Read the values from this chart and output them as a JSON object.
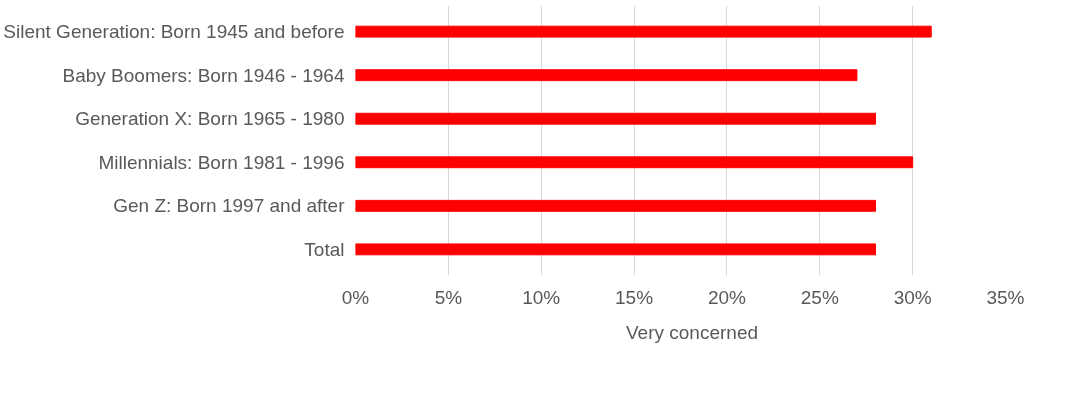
{
  "chart_data": {
    "type": "bar",
    "orientation": "horizontal",
    "categories": [
      "Silent Generation: Born 1945 and before",
      "Baby Boomers: Born 1946 - 1964",
      "Generation X: Born 1965 - 1980",
      "Millennials: Born 1981 - 1996",
      "Gen Z: Born 1997 and after",
      "Total"
    ],
    "series": [
      {
        "name": "Very concerned",
        "color": "#ff0000",
        "values": [
          31,
          27,
          28,
          30,
          28,
          28
        ]
      }
    ],
    "xlim": [
      0,
      35
    ],
    "xticks": [
      {
        "value": 0,
        "label": "0%"
      },
      {
        "value": 5,
        "label": "5%"
      },
      {
        "value": 10,
        "label": "10%"
      },
      {
        "value": 15,
        "label": "15%"
      },
      {
        "value": 20,
        "label": "20%"
      },
      {
        "value": 25,
        "label": "25%"
      },
      {
        "value": 30,
        "label": "30%"
      },
      {
        "value": 35,
        "label": "35%"
      }
    ],
    "grid": "x",
    "legend": "bottom"
  }
}
